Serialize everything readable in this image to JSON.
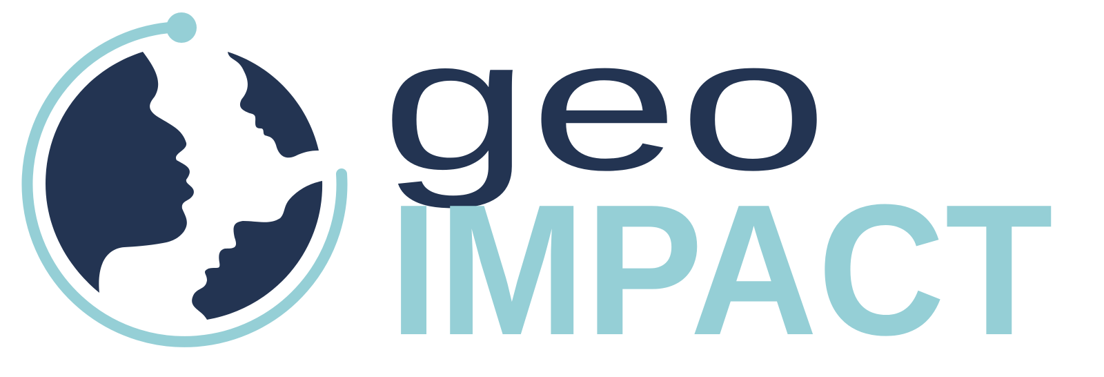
{
  "brand": {
    "name_line1": "geo",
    "name_line2": "IMPACT",
    "colors": {
      "navy": "#233452",
      "teal": "#95CFD6",
      "background": "#FFFFFF"
    }
  },
  "emblem": {
    "icon": "globe-with-facing-profiles-icon",
    "orbit": "orbit-ring-icon"
  }
}
